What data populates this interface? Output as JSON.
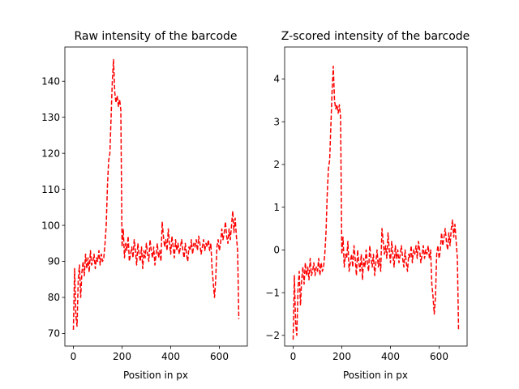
{
  "chart_data": [
    {
      "type": "line",
      "title": "Raw intensity of the barcode",
      "xlabel": "Position in px",
      "ylabel": "",
      "xlim": [
        -35,
        715
      ],
      "ylim": [
        66.5,
        149.5
      ],
      "xticks": [
        0,
        200,
        400,
        600
      ],
      "yticks": [
        70,
        80,
        90,
        100,
        110,
        120,
        130,
        140
      ],
      "line_style": "dashed",
      "color": "#ff0000",
      "grid": false,
      "series": [
        {
          "x": [
            0,
            5,
            10,
            15,
            20,
            25,
            30,
            35,
            40,
            45,
            50,
            55,
            60,
            65,
            70,
            75,
            80,
            85,
            90,
            95,
            100,
            105,
            110,
            115,
            120,
            125,
            130,
            135,
            140,
            145,
            150,
            155,
            160,
            165,
            170,
            175,
            180,
            185,
            190,
            195,
            200,
            205,
            210,
            215,
            220,
            225,
            230,
            235,
            240,
            245,
            250,
            255,
            260,
            265,
            270,
            275,
            280,
            285,
            290,
            295,
            300,
            305,
            310,
            315,
            320,
            325,
            330,
            335,
            340,
            345,
            350,
            355,
            360,
            365,
            370,
            375,
            380,
            385,
            390,
            395,
            400,
            405,
            410,
            415,
            420,
            425,
            430,
            435,
            440,
            445,
            450,
            455,
            460,
            465,
            470,
            475,
            480,
            485,
            490,
            495,
            500,
            505,
            510,
            515,
            520,
            525,
            530,
            535,
            540,
            545,
            550,
            555,
            560,
            565,
            570,
            575,
            580,
            585,
            590,
            595,
            600,
            605,
            610,
            615,
            620,
            625,
            630,
            635,
            640,
            645,
            650,
            655,
            660,
            665,
            670,
            675,
            680
          ],
          "values": [
            71,
            88,
            75,
            72,
            85,
            89,
            80,
            87,
            90,
            86,
            92,
            88,
            91,
            87,
            93,
            89,
            90,
            92,
            88,
            91,
            90,
            93,
            89,
            92,
            90,
            91,
            95,
            100,
            111,
            118,
            120,
            130,
            140,
            146,
            137,
            134,
            136,
            133,
            135,
            132,
            94,
            99,
            91,
            95,
            93,
            97,
            90,
            92,
            94,
            91,
            96,
            93,
            89,
            95,
            92,
            90,
            94,
            88,
            93,
            91,
            95,
            92,
            90,
            96,
            93,
            91,
            94,
            89,
            92,
            95,
            91,
            93,
            90,
            101,
            97,
            94,
            96,
            93,
            99,
            95,
            92,
            97,
            94,
            91,
            96,
            93,
            95,
            92,
            94,
            96,
            93,
            91,
            95,
            92,
            90,
            94,
            93,
            96,
            92,
            95,
            94,
            96,
            93,
            97,
            95,
            92,
            94,
            96,
            93,
            95,
            94,
            96,
            93,
            95,
            88,
            84,
            80,
            85,
            94,
            96,
            93,
            95,
            99,
            96,
            98,
            101,
            97,
            95,
            99,
            96,
            100,
            104,
            98,
            102,
            97,
            93,
            74
          ]
        }
      ]
    },
    {
      "type": "line",
      "title": "Z-scored intensity of the barcode",
      "xlabel": "Position in px",
      "ylabel": "",
      "xlim": [
        -35,
        715
      ],
      "ylim": [
        -2.25,
        4.75
      ],
      "xticks": [
        0,
        200,
        400,
        600
      ],
      "yticks": [
        -2,
        -1,
        0,
        1,
        2,
        3,
        4
      ],
      "line_style": "dashed",
      "color": "#ff0000",
      "grid": false,
      "series": [
        {
          "x": [
            0,
            5,
            10,
            15,
            20,
            25,
            30,
            35,
            40,
            45,
            50,
            55,
            60,
            65,
            70,
            75,
            80,
            85,
            90,
            95,
            100,
            105,
            110,
            115,
            120,
            125,
            130,
            135,
            140,
            145,
            150,
            155,
            160,
            165,
            170,
            175,
            180,
            185,
            190,
            195,
            200,
            205,
            210,
            215,
            220,
            225,
            230,
            235,
            240,
            245,
            250,
            255,
            260,
            265,
            270,
            275,
            280,
            285,
            290,
            295,
            300,
            305,
            310,
            315,
            320,
            325,
            330,
            335,
            340,
            345,
            350,
            355,
            360,
            365,
            370,
            375,
            380,
            385,
            390,
            395,
            400,
            405,
            410,
            415,
            420,
            425,
            430,
            435,
            440,
            445,
            450,
            455,
            460,
            465,
            470,
            475,
            480,
            485,
            490,
            495,
            500,
            505,
            510,
            515,
            520,
            525,
            530,
            535,
            540,
            545,
            550,
            555,
            560,
            565,
            570,
            575,
            580,
            585,
            590,
            595,
            600,
            605,
            610,
            615,
            620,
            625,
            630,
            635,
            640,
            645,
            650,
            655,
            660,
            665,
            670,
            675,
            680
          ],
          "values": [
            -2.1,
            -0.6,
            -1.7,
            -2.0,
            -0.9,
            -0.5,
            -1.3,
            -0.7,
            -0.4,
            -0.8,
            -0.3,
            -0.6,
            -0.4,
            -0.7,
            -0.2,
            -0.6,
            -0.5,
            -0.3,
            -0.6,
            -0.4,
            -0.5,
            -0.2,
            -0.6,
            -0.3,
            -0.5,
            -0.4,
            -0.1,
            0.4,
            1.3,
            1.9,
            2.1,
            2.9,
            3.7,
            4.3,
            3.5,
            3.3,
            3.4,
            3.2,
            3.4,
            3.1,
            -0.1,
            0.3,
            -0.4,
            -0.1,
            -0.2,
            0.2,
            -0.5,
            -0.3,
            -0.1,
            -0.4,
            0.1,
            -0.2,
            -0.6,
            0.0,
            -0.3,
            -0.5,
            -0.1,
            -0.7,
            -0.2,
            -0.4,
            0.0,
            -0.3,
            -0.5,
            0.1,
            -0.2,
            -0.4,
            -0.1,
            -0.6,
            -0.3,
            0.0,
            -0.4,
            -0.2,
            -0.5,
            0.5,
            0.2,
            -0.1,
            0.1,
            -0.2,
            0.4,
            0.0,
            -0.3,
            0.2,
            -0.1,
            -0.4,
            0.1,
            -0.2,
            0.0,
            -0.3,
            -0.1,
            0.1,
            -0.2,
            -0.4,
            0.0,
            -0.3,
            -0.5,
            -0.1,
            -0.2,
            0.1,
            -0.3,
            0.0,
            -0.1,
            0.1,
            -0.2,
            0.2,
            0.0,
            -0.3,
            -0.1,
            0.1,
            -0.2,
            0.0,
            -0.1,
            0.1,
            -0.2,
            0.0,
            -0.8,
            -1.1,
            -1.5,
            -1.1,
            -0.1,
            0.1,
            -0.2,
            0.0,
            0.4,
            0.1,
            0.3,
            0.5,
            0.2,
            0.0,
            0.4,
            0.1,
            0.5,
            0.7,
            0.3,
            0.6,
            0.2,
            -0.2,
            -1.9
          ]
        }
      ]
    }
  ]
}
